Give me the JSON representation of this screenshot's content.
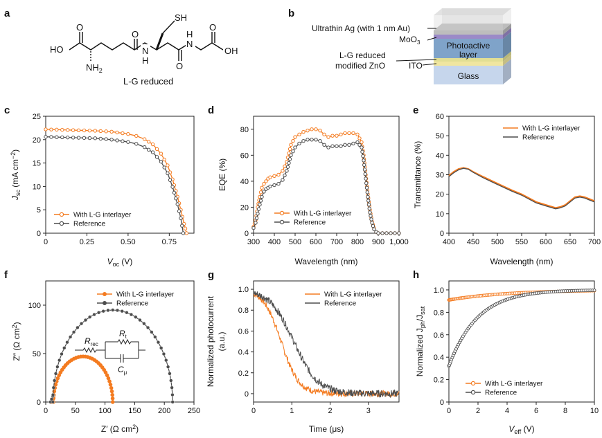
{
  "colors": {
    "orange": "#F47B20",
    "gray": "#4d4d4d"
  },
  "panel_labels": {
    "a": "a",
    "b": "b",
    "c": "c",
    "d": "d",
    "e": "e",
    "f": "f",
    "g": "g",
    "h": "h"
  },
  "molecule": {
    "name": "L-G reduced",
    "labels": {
      "ho_left": "HO",
      "o_left": "O",
      "nh2": "NH",
      "nh2_sub": "2",
      "nh_mid": "N",
      "h_mid": "H",
      "o_mid1": "O",
      "sh": "SH",
      "o_mid2": "O",
      "nh_right": "N",
      "h_right": "H",
      "o_right": "O",
      "oh_right": "OH"
    }
  },
  "device": {
    "labels": {
      "ag": "Ultrathin Ag (with 1 nm Au)",
      "moo3": "MoO",
      "moo3_sub": "3",
      "active1": "Photoactive",
      "active2": "layer",
      "zno1": "L-G reduced",
      "zno2": "modified ZnO",
      "ito": "ITO",
      "glass": "Glass"
    },
    "layer_colors": {
      "ag": "#bdbdbd",
      "moo3": "#9b8ac8",
      "active": "#7fa3c9",
      "zno": "#e2df94",
      "ito": "#f0e6a0",
      "glass": "#c6d6ec"
    }
  },
  "chart_data": [
    {
      "id": "c",
      "type": "line",
      "xlabel": "V",
      "xlabel_sub": "oc",
      "xlabel_unit": " (V)",
      "ylabel": "J",
      "ylabel_sub": "sc",
      "ylabel_unit": " (mA cm",
      "ylabel_sup": "−2",
      "ylabel_end": ")",
      "xlim": [
        0,
        0.9
      ],
      "ylim": [
        0,
        25
      ],
      "xticks": [
        0,
        0.25,
        0.5,
        0.75
      ],
      "xtick_labels": [
        "0",
        "0.25",
        "0.50",
        "0.75"
      ],
      "yticks": [
        0,
        5,
        10,
        15,
        20,
        25
      ],
      "ytick_labels": [
        "0",
        "5",
        "10",
        "15",
        "20",
        "25"
      ],
      "legend": "lower-left",
      "series": [
        {
          "name": "With L-G interlayer",
          "color": "#F47B20",
          "x": [
            0,
            0.1,
            0.2,
            0.3,
            0.4,
            0.5,
            0.55,
            0.6,
            0.65,
            0.7,
            0.74,
            0.77,
            0.8,
            0.82,
            0.84,
            0.855
          ],
          "y": [
            22.2,
            22.1,
            22.0,
            21.9,
            21.7,
            21.2,
            20.8,
            20.1,
            19.0,
            17.0,
            14.5,
            11.5,
            7.8,
            5.0,
            2.0,
            0
          ]
        },
        {
          "name": "Reference",
          "color": "#4d4d4d",
          "x": [
            0,
            0.1,
            0.2,
            0.3,
            0.4,
            0.5,
            0.55,
            0.6,
            0.65,
            0.7,
            0.74,
            0.77,
            0.8,
            0.82,
            0.835
          ],
          "y": [
            20.6,
            20.5,
            20.4,
            20.3,
            20.0,
            19.5,
            19.1,
            18.4,
            17.3,
            15.3,
            12.8,
            9.9,
            6.2,
            3.2,
            0
          ]
        }
      ]
    },
    {
      "id": "d",
      "type": "line",
      "xlabel": "Wavelength (nm)",
      "ylabel": "EQE (%)",
      "xlim": [
        300,
        1000
      ],
      "ylim": [
        0,
        90
      ],
      "xticks": [
        300,
        400,
        500,
        600,
        700,
        800,
        900,
        1000
      ],
      "xtick_labels": [
        "300",
        "400",
        "500",
        "600",
        "700",
        "800",
        "900",
        "1,000"
      ],
      "yticks": [
        0,
        20,
        40,
        60,
        80
      ],
      "ytick_labels": [
        "0",
        "20",
        "40",
        "60",
        "80"
      ],
      "legend": "lower-center",
      "series": [
        {
          "name": "With L-G interlayer",
          "color": "#F47B20",
          "x": [
            300,
            310,
            320,
            330,
            340,
            350,
            360,
            370,
            380,
            400,
            420,
            440,
            460,
            480,
            500,
            520,
            540,
            560,
            580,
            600,
            620,
            640,
            660,
            680,
            700,
            720,
            740,
            760,
            780,
            800,
            820,
            830,
            840,
            850,
            860,
            870,
            880,
            890,
            900,
            920,
            940,
            960,
            1000
          ],
          "y": [
            5,
            10,
            20,
            28,
            35,
            38,
            40,
            42,
            43,
            44,
            45,
            48,
            55,
            68,
            74,
            76,
            78,
            79,
            80,
            80,
            79,
            76,
            74,
            75,
            75,
            76,
            77,
            77,
            77,
            76,
            70,
            60,
            45,
            30,
            18,
            9,
            4,
            1,
            0,
            0,
            0,
            0,
            0
          ]
        },
        {
          "name": "Reference",
          "color": "#4d4d4d",
          "x": [
            300,
            310,
            320,
            330,
            340,
            350,
            360,
            370,
            380,
            400,
            420,
            440,
            460,
            480,
            500,
            520,
            540,
            560,
            580,
            600,
            620,
            640,
            660,
            680,
            700,
            720,
            740,
            760,
            780,
            800,
            820,
            830,
            840,
            850,
            860,
            870,
            880,
            890,
            900,
            920,
            940,
            960,
            1000
          ],
          "y": [
            4,
            8,
            15,
            22,
            28,
            32,
            34,
            35,
            36,
            37,
            38,
            41,
            48,
            60,
            66,
            69,
            71,
            72,
            72,
            72,
            71,
            68,
            66,
            67,
            67,
            67,
            68,
            68,
            69,
            70,
            66,
            56,
            42,
            28,
            16,
            8,
            3,
            1,
            0,
            0,
            0,
            0,
            0
          ]
        }
      ]
    },
    {
      "id": "e",
      "type": "line",
      "xlabel": "Wavelength (nm)",
      "ylabel": "Transmittance (%)",
      "xlim": [
        400,
        700
      ],
      "ylim": [
        0,
        60
      ],
      "xticks": [
        400,
        450,
        500,
        550,
        600,
        650,
        700
      ],
      "xtick_labels": [
        "400",
        "450",
        "500",
        "550",
        "600",
        "650",
        "700"
      ],
      "yticks": [
        0,
        10,
        20,
        30,
        40,
        50,
        60
      ],
      "ytick_labels": [
        "0",
        "10",
        "20",
        "30",
        "40",
        "50",
        "60"
      ],
      "legend": "top-right",
      "series": [
        {
          "name": "With L-G interlayer",
          "color": "#F47B20",
          "x": [
            400,
            410,
            420,
            430,
            440,
            450,
            470,
            500,
            530,
            550,
            580,
            600,
            620,
            630,
            640,
            650,
            660,
            670,
            680,
            690,
            700
          ],
          "y": [
            29.5,
            31.5,
            33,
            33.5,
            33,
            31.5,
            29,
            25.5,
            22,
            20,
            16,
            14.5,
            13,
            13.5,
            14.5,
            16.5,
            18.5,
            19,
            18.5,
            17.5,
            16.5
          ]
        },
        {
          "name": "Reference",
          "color": "#4d4d4d",
          "x": [
            400,
            410,
            420,
            430,
            440,
            450,
            470,
            500,
            530,
            550,
            580,
            600,
            620,
            630,
            640,
            650,
            660,
            670,
            680,
            690,
            700
          ],
          "y": [
            29,
            31,
            32.5,
            33.3,
            32.8,
            31.2,
            28.5,
            25,
            21.5,
            19.5,
            15.5,
            14,
            12.5,
            13,
            14,
            16,
            18,
            18.5,
            18,
            17,
            16
          ]
        }
      ]
    },
    {
      "id": "f",
      "type": "scatter",
      "xlabel": "Z′ (Ω cm",
      "xlabel_sup": "2",
      "xlabel_end": ")",
      "ylabel": "Z″ (Ω cm",
      "ylabel_sup": "2",
      "ylabel_end": ")",
      "xlim": [
        0,
        250
      ],
      "ylim": [
        0,
        125
      ],
      "xticks": [
        0,
        50,
        100,
        150,
        200,
        250
      ],
      "xtick_labels": [
        "0",
        "50",
        "100",
        "150",
        "200",
        "250"
      ],
      "yticks": [
        0,
        50,
        100
      ],
      "ytick_labels": [
        "0",
        "50",
        "100"
      ],
      "legend": "top-right",
      "circuit": {
        "r_rec": "R",
        "r_rec_sub": "rec",
        "r_t": "R",
        "r_t_sub": "t",
        "c_mu": "C",
        "c_mu_sub": "μ"
      },
      "series": [
        {
          "name": "With L-G interlayer",
          "color": "#F47B20",
          "center": 63,
          "radius": 50,
          "offset": 13,
          "rise": 5
        },
        {
          "name": "Reference",
          "color": "#4d4d4d",
          "center": 113,
          "radius": 101,
          "offset": 12,
          "rise": 6
        }
      ]
    },
    {
      "id": "g",
      "type": "line",
      "xlabel": "Time (μs)",
      "ylabel": "Normalized photocurrent",
      "ylabel2": "(a.u.)",
      "xlim": [
        0,
        3.8
      ],
      "ylim": [
        -0.08,
        1.08
      ],
      "xticks": [
        0,
        1,
        2,
        3
      ],
      "xtick_labels": [
        "0",
        "1",
        "2",
        "3"
      ],
      "yticks": [
        0,
        0.2,
        0.4,
        0.6,
        0.8,
        1.0
      ],
      "ytick_labels": [
        "0",
        "0.2",
        "0.4",
        "0.6",
        "0.8",
        "1.0"
      ],
      "legend": "top-right",
      "series": [
        {
          "name": "With L-G interlayer",
          "color": "#F47B20",
          "tau": 0.55,
          "t0": 0.72,
          "noise": 0.03
        },
        {
          "name": "Reference",
          "color": "#4d4d4d",
          "tau": 0.75,
          "t0": 1.05,
          "noise": 0.035
        }
      ]
    },
    {
      "id": "h",
      "type": "scatter",
      "xlabel": "V",
      "xlabel_sub": "eff",
      "xlabel_unit": " (V)",
      "ylabel": "Normalized J",
      "ylabel_sub1": "ph",
      "ylabel_mid": "/J",
      "ylabel_sub2": "sat",
      "xlim": [
        0,
        10
      ],
      "ylim": [
        0,
        1.08
      ],
      "xticks": [
        0,
        2,
        4,
        6,
        8,
        10
      ],
      "xtick_labels": [
        "0",
        "2",
        "4",
        "6",
        "8",
        "10"
      ],
      "yticks": [
        0,
        0.2,
        0.4,
        0.6,
        0.8,
        1.0
      ],
      "ytick_labels": [
        "0",
        "0.2",
        "0.4",
        "0.6",
        "0.8",
        "1.0"
      ],
      "legend": "lower-center",
      "series": [
        {
          "name": "With L-G interlayer",
          "color": "#F47B20",
          "start": 0.91,
          "end": 1.0
        },
        {
          "name": "Reference",
          "color": "#4d4d4d",
          "start": 0.32,
          "end": 1.0
        }
      ]
    }
  ]
}
